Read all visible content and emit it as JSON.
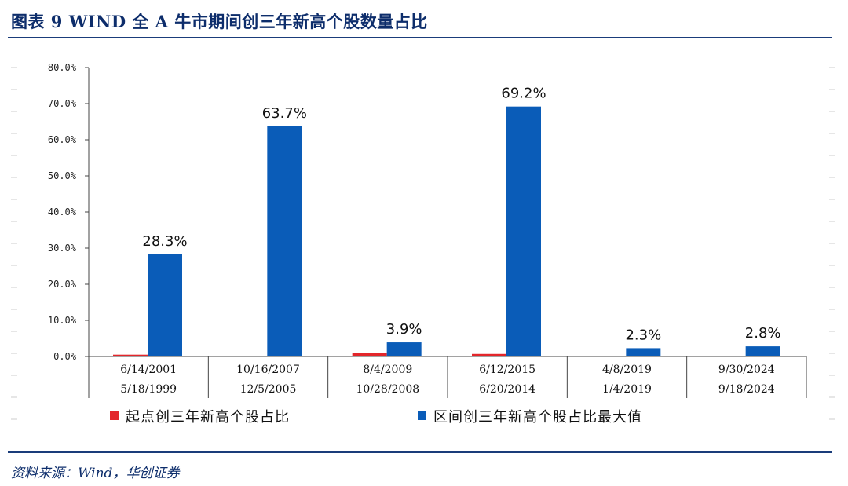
{
  "title": "图表 9   WIND 全 A 牛市期间创三年新高个股数量占比",
  "source": "资料来源：Wind，华创证券",
  "colors": {
    "start": "#e3262b",
    "max": "#0a5cb8",
    "rule": "#1a3c7a"
  },
  "chart_data": {
    "type": "bar",
    "ylim": [
      0,
      80
    ],
    "yticks": [
      "0.0%",
      "10.0%",
      "20.0%",
      "30.0%",
      "40.0%",
      "50.0%",
      "60.0%",
      "70.0%",
      "80.0%"
    ],
    "categories": [
      [
        "6/14/2001",
        "5/18/1999"
      ],
      [
        "10/16/2007",
        "12/5/2005"
      ],
      [
        "8/4/2009",
        "10/28/2008"
      ],
      [
        "6/12/2015",
        "6/20/2014"
      ],
      [
        "4/8/2019",
        "1/4/2019"
      ],
      [
        "9/30/2024",
        "9/18/2024"
      ]
    ],
    "series": [
      {
        "name": "起点创三年新高个股占比",
        "values": [
          0.5,
          0.0,
          1.0,
          0.7,
          0.0,
          0.0
        ]
      },
      {
        "name": "区间创三年新高个股占比最大值",
        "values": [
          28.3,
          63.7,
          3.9,
          69.2,
          2.3,
          2.8
        ],
        "labels": [
          "28.3%",
          "63.7%",
          "3.9%",
          "69.2%",
          "2.3%",
          "2.8%"
        ]
      }
    ],
    "legend": "bottom",
    "grid": false
  }
}
